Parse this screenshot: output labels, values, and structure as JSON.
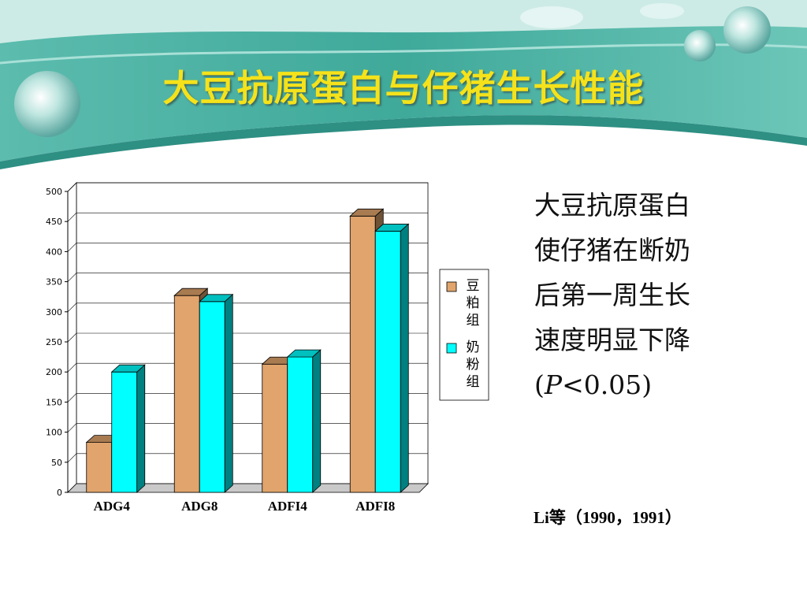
{
  "title": "大豆抗原蛋白与仔猪生长性能",
  "side_text": {
    "lines": [
      "大豆抗原蛋白",
      "使仔猪在断奶",
      "后第一周生长",
      "速度明显下降"
    ],
    "stat_open": "(",
    "stat_p": "P",
    "stat_rest": "<0.05)"
  },
  "citation": "Li等（1990，1991）",
  "colors": {
    "accent": "#f5e21a",
    "banner": "#4fb5a8",
    "bean": "#e0a46c",
    "milk": "#00ffff"
  },
  "chart_data": {
    "type": "bar",
    "categories": [
      "ADG4",
      "ADG8",
      "ADFI4",
      "ADFI8"
    ],
    "series": [
      {
        "name": "豆粕组",
        "values": [
          83,
          327,
          213,
          459
        ],
        "color": "#e0a46c"
      },
      {
        "name": "奶粉组",
        "values": [
          200,
          317,
          225,
          434
        ],
        "color": "#00ffff"
      }
    ],
    "ylim": [
      0,
      500
    ],
    "yticks": [
      0,
      50,
      100,
      150,
      200,
      250,
      300,
      350,
      400,
      450,
      500
    ],
    "grid": true,
    "legend_position": "right",
    "style": "3d-bar"
  }
}
